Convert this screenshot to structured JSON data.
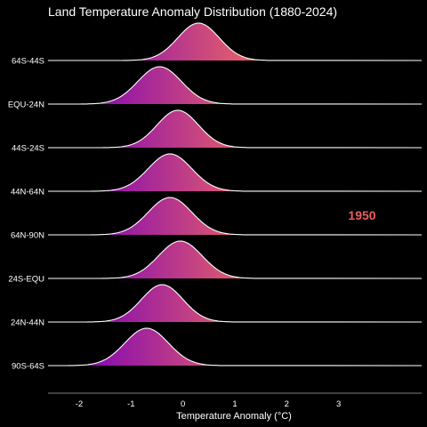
{
  "chart_data": {
    "type": "area",
    "title": "Land Temperature Anomaly Distribution (1880-2024)",
    "xlabel": "Temperature Anomaly (°C)",
    "ylabel": "",
    "annotation": "1950",
    "annotation_color": "#e8605f",
    "gradient_colors": [
      "#7a00b8",
      "#f06a62"
    ],
    "line_color": "#ffffff",
    "background": "#000000",
    "xlim": [
      -2.6,
      4.6
    ],
    "xticks": [
      -2,
      -1,
      0,
      1,
      2,
      3
    ],
    "grid": false,
    "series": [
      {
        "name": "64S-44S",
        "mean": 0.3,
        "sd": 0.4
      },
      {
        "name": "EQU-24N",
        "mean": -0.45,
        "sd": 0.42
      },
      {
        "name": "44S-24S",
        "mean": -0.1,
        "sd": 0.4
      },
      {
        "name": "44N-64N",
        "mean": -0.25,
        "sd": 0.42
      },
      {
        "name": "64N-90N",
        "mean": -0.25,
        "sd": 0.42
      },
      {
        "name": "24S-EQU",
        "mean": -0.05,
        "sd": 0.42
      },
      {
        "name": "24N-44N",
        "mean": -0.4,
        "sd": 0.4
      },
      {
        "name": "90S-64S",
        "mean": -0.7,
        "sd": 0.42
      }
    ]
  }
}
